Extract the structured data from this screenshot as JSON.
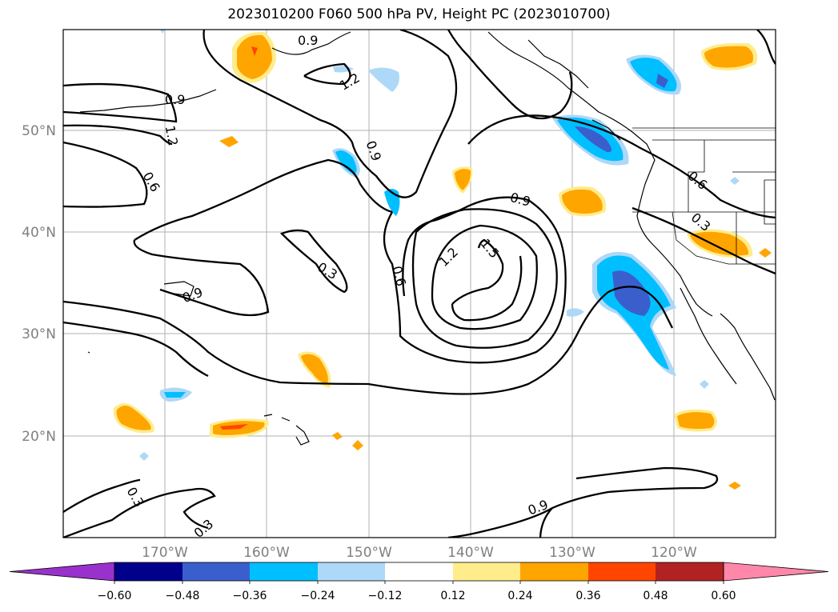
{
  "title": "2023010200 F060 500 hPa PV, Height PC (2023010700)",
  "axes": {
    "lon_labels": [
      "170°W",
      "160°W",
      "150°W",
      "140°W",
      "130°W",
      "120°W"
    ],
    "lat_labels": [
      "50°N",
      "40°N",
      "30°N",
      "20°N"
    ]
  },
  "contour_labels": [
    "0.9",
    "0.9",
    "1.2",
    "0.9",
    "1.2",
    "0.6",
    "0.9",
    "0.3",
    "0.6",
    "0.9",
    "1.2",
    "1.5",
    "0.6",
    "0.3",
    "0.3",
    "0.3",
    "0.9"
  ],
  "colorbar": {
    "ticks": [
      "−0.60",
      "−0.48",
      "−0.36",
      "−0.24",
      "−0.12",
      "0.12",
      "0.24",
      "0.36",
      "0.48",
      "0.60"
    ],
    "colors": [
      "#9932cc",
      "#00008b",
      "#3a5fcd",
      "#00bfff",
      "#add8f7",
      "#ffffff",
      "#ffec8b",
      "#ffa500",
      "#ff4500",
      "#b22222",
      "#ff88aa"
    ]
  },
  "colors": {
    "frame": "#000000",
    "grid": "#b0b0b0",
    "tick_text": "#7f7f7f"
  }
}
